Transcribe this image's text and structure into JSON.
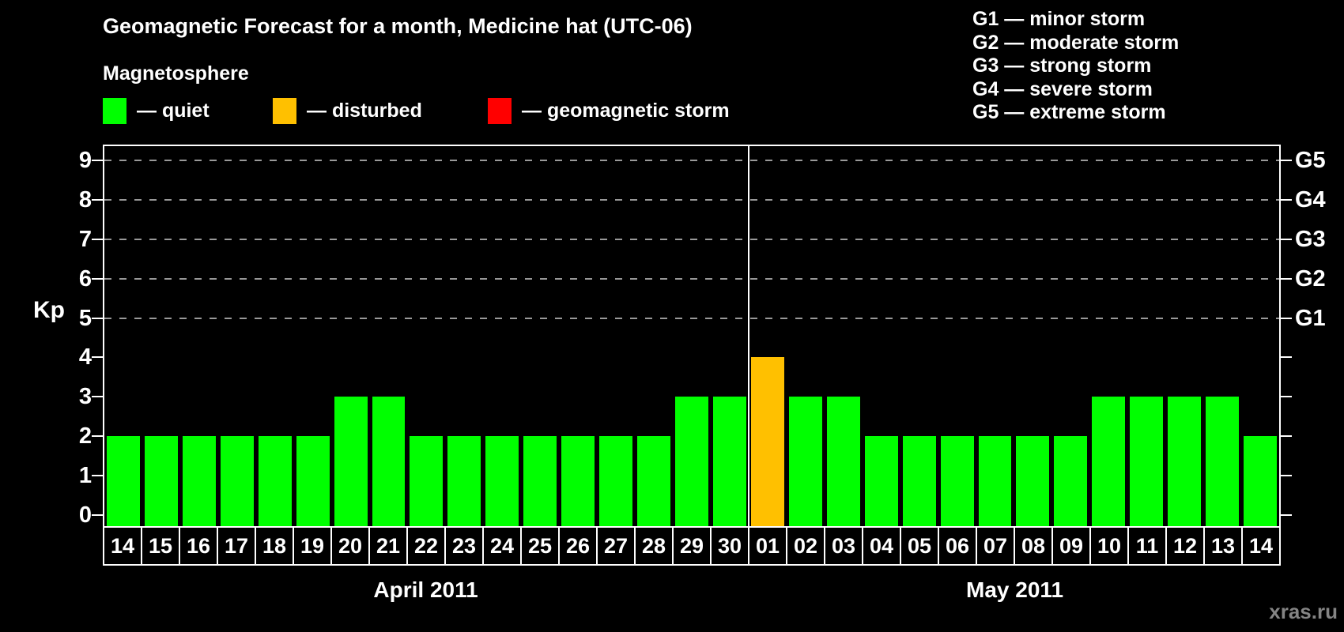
{
  "header": {
    "title": "Geomagnetic Forecast for a month, Medicine hat (UTC-06)",
    "subtitle": "Magnetosphere"
  },
  "legend": {
    "items": [
      {
        "label": "— quiet",
        "color": "#00ff00",
        "status": "quiet"
      },
      {
        "label": "— disturbed",
        "color": "#ffc000",
        "status": "disturbed"
      },
      {
        "label": "— geomagnetic storm",
        "color": "#ff0000",
        "status": "storm"
      }
    ]
  },
  "g_legend": [
    "G1 — minor storm",
    "G2 — moderate storm",
    "G3 — strong storm",
    "G4 — severe storm",
    "G5 — extreme storm"
  ],
  "watermark": "xras.ru",
  "chart_data": {
    "type": "bar",
    "title": "Geomagnetic Forecast for a month, Medicine hat (UTC-06)",
    "ylabel": "Kp",
    "ylim": [
      0,
      9
    ],
    "y_ticks": [
      0,
      1,
      2,
      3,
      4,
      5,
      6,
      7,
      8,
      9
    ],
    "gridlines_at": [
      5,
      6,
      7,
      8,
      9
    ],
    "right_axis_labels": {
      "5": "G1",
      "6": "G2",
      "7": "G3",
      "8": "G4",
      "9": "G5"
    },
    "colors": {
      "quiet": "#00ff00",
      "disturbed": "#ffc000",
      "storm": "#ff0000"
    },
    "color_rule": {
      "disturbed_min_kp": 4,
      "storm_min_kp": 5
    },
    "grid": "dashed horizontal at Kp 5-9 only",
    "legend_position": "top",
    "months": [
      {
        "label": "April 2011",
        "days": [
          "14",
          "15",
          "16",
          "17",
          "18",
          "19",
          "20",
          "21",
          "22",
          "23",
          "24",
          "25",
          "26",
          "27",
          "28",
          "29",
          "30"
        ],
        "values": [
          2,
          2,
          2,
          2,
          2,
          2,
          3,
          3,
          2,
          2,
          2,
          2,
          2,
          2,
          2,
          3,
          3
        ]
      },
      {
        "label": "May 2011",
        "days": [
          "01",
          "02",
          "03",
          "04",
          "05",
          "06",
          "07",
          "08",
          "09",
          "10",
          "11",
          "12",
          "13",
          "14"
        ],
        "values": [
          4,
          3,
          3,
          2,
          2,
          2,
          2,
          2,
          2,
          3,
          3,
          3,
          3,
          2
        ]
      }
    ]
  }
}
